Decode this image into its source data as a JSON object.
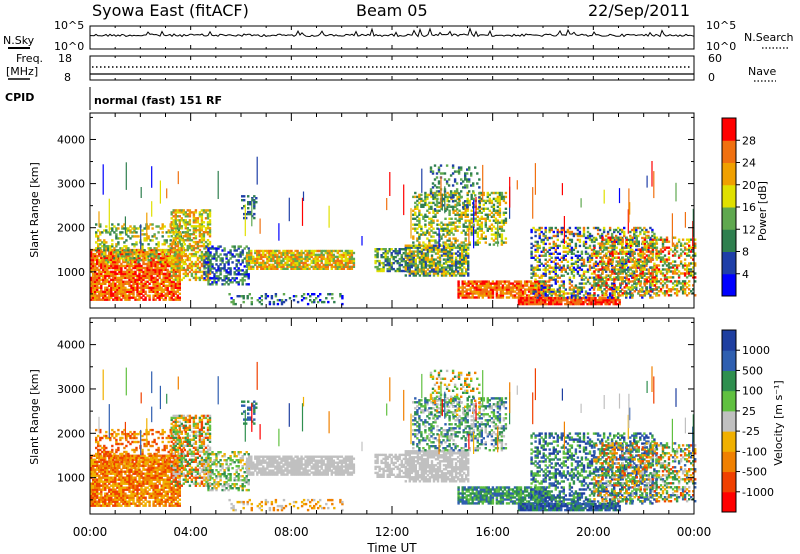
{
  "header": {
    "title": "Syowa East (fitACF)",
    "beam": "Beam 05",
    "date": "22/Sep/2011"
  },
  "left_labels": {
    "nsky": "N.Sky",
    "nsky_top": "10^5",
    "nsky_bot": "10^0",
    "freq_line1": "Freq.",
    "freq_line2": "[MHz]",
    "freq_top": "18",
    "freq_bot": "8",
    "cpid": "CPID"
  },
  "right_labels": {
    "nsearch": "N.Search",
    "nsearch_top": "10^5",
    "nsearch_bot": "10^0",
    "nave": "Nave",
    "nave_top": "60",
    "nave_bot": "0"
  },
  "cpid_text": "normal (fast) 151 RF",
  "colors": {
    "power_scale": [
      "#0000ff",
      "#1f3fa8",
      "#2f7f4f",
      "#5fa84f",
      "#e0e000",
      "#f0a000",
      "#f07010",
      "#ff0000"
    ],
    "velocity_scale": [
      "#ff0000",
      "#f04000",
      "#f08000",
      "#f0b000",
      "#c0c0c0",
      "#60c040",
      "#2f8f4f",
      "#2f5fb0",
      "#1f3fa0"
    ]
  },
  "chart_data": [
    {
      "type": "heatmap",
      "panel": "power",
      "ylabel": "Slant Range [km]",
      "yticks": [
        1000,
        2000,
        3000,
        4000
      ],
      "ylim": [
        180,
        4600
      ],
      "xlim_hours": [
        0,
        24
      ],
      "colorbar_label": "Power [dB]",
      "colorbar_ticks": [
        "4",
        "8",
        "12",
        "16",
        "20",
        "24",
        "28"
      ],
      "colorbar_range": [
        0,
        32
      ]
    },
    {
      "type": "heatmap",
      "panel": "velocity",
      "ylabel": "Slant Range [km]",
      "yticks": [
        1000,
        2000,
        3000,
        4000
      ],
      "ylim": [
        180,
        4600
      ],
      "xlim_hours": [
        0,
        24
      ],
      "colorbar_label": "Velocity [m s⁻¹]",
      "colorbar_ticks": [
        "-1000",
        "-500",
        "-100",
        "-25",
        "25",
        "100",
        "500",
        "1000"
      ]
    }
  ],
  "x_axis": {
    "ticks": [
      "00:00",
      "04:00",
      "08:00",
      "12:00",
      "16:00",
      "20:00",
      "00:00"
    ],
    "label": "Time UT"
  }
}
